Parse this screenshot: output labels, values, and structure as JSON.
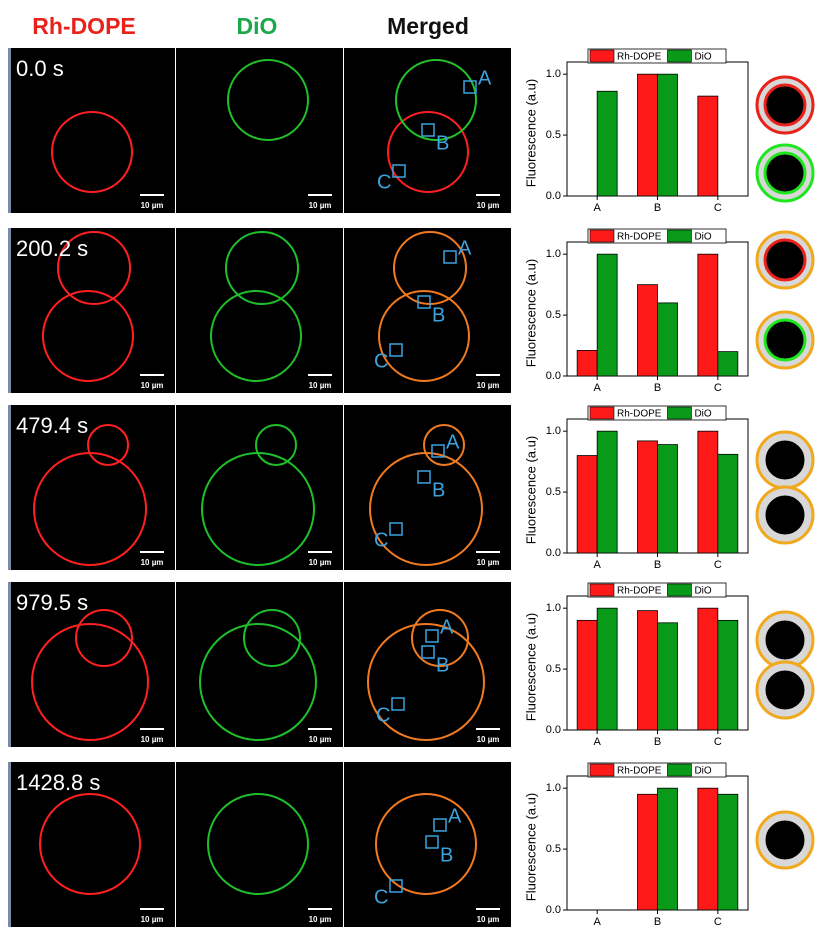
{
  "headers": [
    "Rh-DOPE",
    "DiO",
    "Merged"
  ],
  "scale_bar": "10 µm",
  "region_labels": [
    "A",
    "B",
    "C"
  ],
  "rows": [
    {
      "time": "0.0 s"
    },
    {
      "time": "200.2 s"
    },
    {
      "time": "479.4 s"
    },
    {
      "time": "979.5 s"
    },
    {
      "time": "1428.8 s"
    }
  ],
  "chart_data": [
    {
      "type": "bar",
      "ylabel": "Fluorescence (a.u)",
      "categories": [
        "A",
        "B",
        "C"
      ],
      "series": [
        {
          "name": "Rh-DOPE",
          "color": "#ff1a1a",
          "values": [
            null,
            1.0,
            0.82
          ]
        },
        {
          "name": "DiO",
          "color": "#0a9a1a",
          "values": [
            0.86,
            1.0,
            null
          ]
        }
      ],
      "ylim": [
        0,
        1.1
      ],
      "yticks": [
        {
          "value": 0,
          "label": "0.0"
        },
        {
          "value": 0.5,
          "label": "0.5"
        },
        {
          "value": 1,
          "label": "1.0"
        }
      ],
      "legend": "top"
    },
    {
      "type": "bar",
      "ylabel": "Fluorescence (a.u)",
      "categories": [
        "A",
        "B",
        "C"
      ],
      "series": [
        {
          "name": "Rh-DOPE",
          "color": "#ff1a1a",
          "values": [
            0.21,
            0.75,
            1.0
          ]
        },
        {
          "name": "DiO",
          "color": "#0a9a1a",
          "values": [
            1.0,
            0.6,
            0.2
          ]
        }
      ],
      "ylim": [
        0,
        1.1
      ],
      "yticks": [
        {
          "value": 0,
          "label": "0.0"
        },
        {
          "value": 0.5,
          "label": "0.5"
        },
        {
          "value": 1,
          "label": "1.0"
        }
      ],
      "legend": "top"
    },
    {
      "type": "bar",
      "ylabel": "Fluorescence (a.u)",
      "categories": [
        "A",
        "B",
        "C"
      ],
      "series": [
        {
          "name": "Rh-DOPE",
          "color": "#ff1a1a",
          "values": [
            0.8,
            0.92,
            1.0
          ]
        },
        {
          "name": "DiO",
          "color": "#0a9a1a",
          "values": [
            1.0,
            0.89,
            0.81
          ]
        }
      ],
      "ylim": [
        0,
        1.1
      ],
      "yticks": [
        {
          "value": 0,
          "label": "0.0"
        },
        {
          "value": 0.5,
          "label": "0.5"
        },
        {
          "value": 1,
          "label": "1.0"
        }
      ],
      "legend": "top"
    },
    {
      "type": "bar",
      "ylabel": "Fluorescence (a.u)",
      "categories": [
        "A",
        "B",
        "C"
      ],
      "series": [
        {
          "name": "Rh-DOPE",
          "color": "#ff1a1a",
          "values": [
            0.9,
            0.98,
            1.0
          ]
        },
        {
          "name": "DiO",
          "color": "#0a9a1a",
          "values": [
            1.0,
            0.88,
            0.9
          ]
        }
      ],
      "ylim": [
        0,
        1.1
      ],
      "yticks": [
        {
          "value": 0,
          "label": "0.0"
        },
        {
          "value": 0.5,
          "label": "0.5"
        },
        {
          "value": 1,
          "label": "1.0"
        }
      ],
      "legend": "top"
    },
    {
      "type": "bar",
      "ylabel": "Fluorescence (a.u)",
      "categories": [
        "A",
        "B",
        "C"
      ],
      "series": [
        {
          "name": "Rh-DOPE",
          "color": "#ff1a1a",
          "values": [
            null,
            0.95,
            1.0
          ]
        },
        {
          "name": "DiO",
          "color": "#0a9a1a",
          "values": [
            null,
            1.0,
            0.95
          ]
        }
      ],
      "ylim": [
        0,
        1.1
      ],
      "yticks": [
        {
          "value": 0,
          "label": "0.0"
        },
        {
          "value": 0.5,
          "label": "0.5"
        },
        {
          "value": 1,
          "label": "1.0"
        }
      ],
      "legend": "top"
    }
  ]
}
